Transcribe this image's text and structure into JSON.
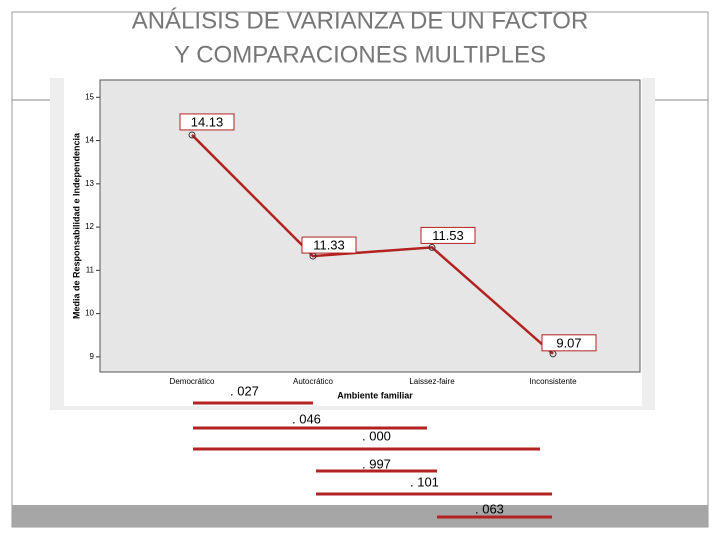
{
  "chart_data": {
    "type": "line",
    "title": [
      "ANÁLISIS DE VARIANZA DE UN FACTOR",
      "Y COMPARACIONES MULTIPLES"
    ],
    "y_label": "Media de Responsabilidad e Independencia",
    "x_label": "Ambiente familiar",
    "categories": [
      "Democrático",
      "Autocrático",
      "Laissez-faire",
      "Inconsistente"
    ],
    "series": [
      {
        "name": "Media",
        "color": "#b22222",
        "values": [
          14.13,
          11.33,
          11.53,
          9.07
        ]
      }
    ],
    "ylim": [
      8.65,
      15.4
    ],
    "yticks": [
      9,
      10,
      11,
      12,
      13,
      14,
      15
    ],
    "comparisons": [
      ". 027",
      ". 046",
      ". 000",
      ". 997",
      ". 101",
      ". 063"
    ]
  }
}
